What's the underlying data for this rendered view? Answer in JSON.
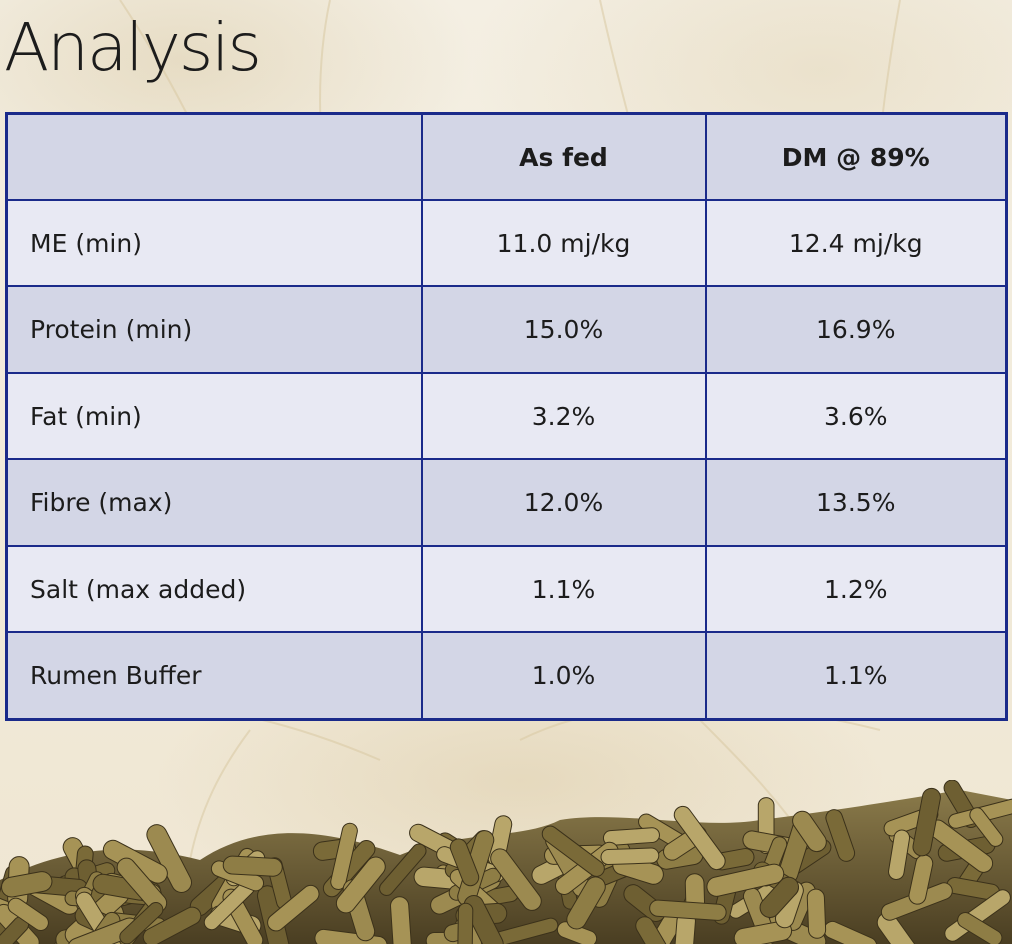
{
  "page": {
    "title": "Analysis"
  },
  "table": {
    "headers": [
      "",
      "As fed",
      "DM @ 89%"
    ],
    "rows": [
      {
        "label": "ME (min)",
        "as_fed": "11.0 mj/kg",
        "dm": "12.4 mj/kg"
      },
      {
        "label": "Protein (min)",
        "as_fed": "15.0%",
        "dm": "16.9%"
      },
      {
        "label": "Fat (min)",
        "as_fed": "3.2%",
        "dm": "3.6%"
      },
      {
        "label": "Fibre (max)",
        "as_fed": "12.0%",
        "dm": "13.5%"
      },
      {
        "label": "Salt (max added)",
        "as_fed": "1.1%",
        "dm": "1.2%"
      },
      {
        "label": "Rumen Buffer",
        "as_fed": "1.0%",
        "dm": "1.1%"
      }
    ]
  },
  "colors": {
    "border": "#1a2a8a",
    "row_light": "#e8e9f3",
    "row_dark": "#d3d6e6"
  },
  "images": {
    "background": "wheat-straw-background",
    "footer": "feed-pellets-image"
  }
}
